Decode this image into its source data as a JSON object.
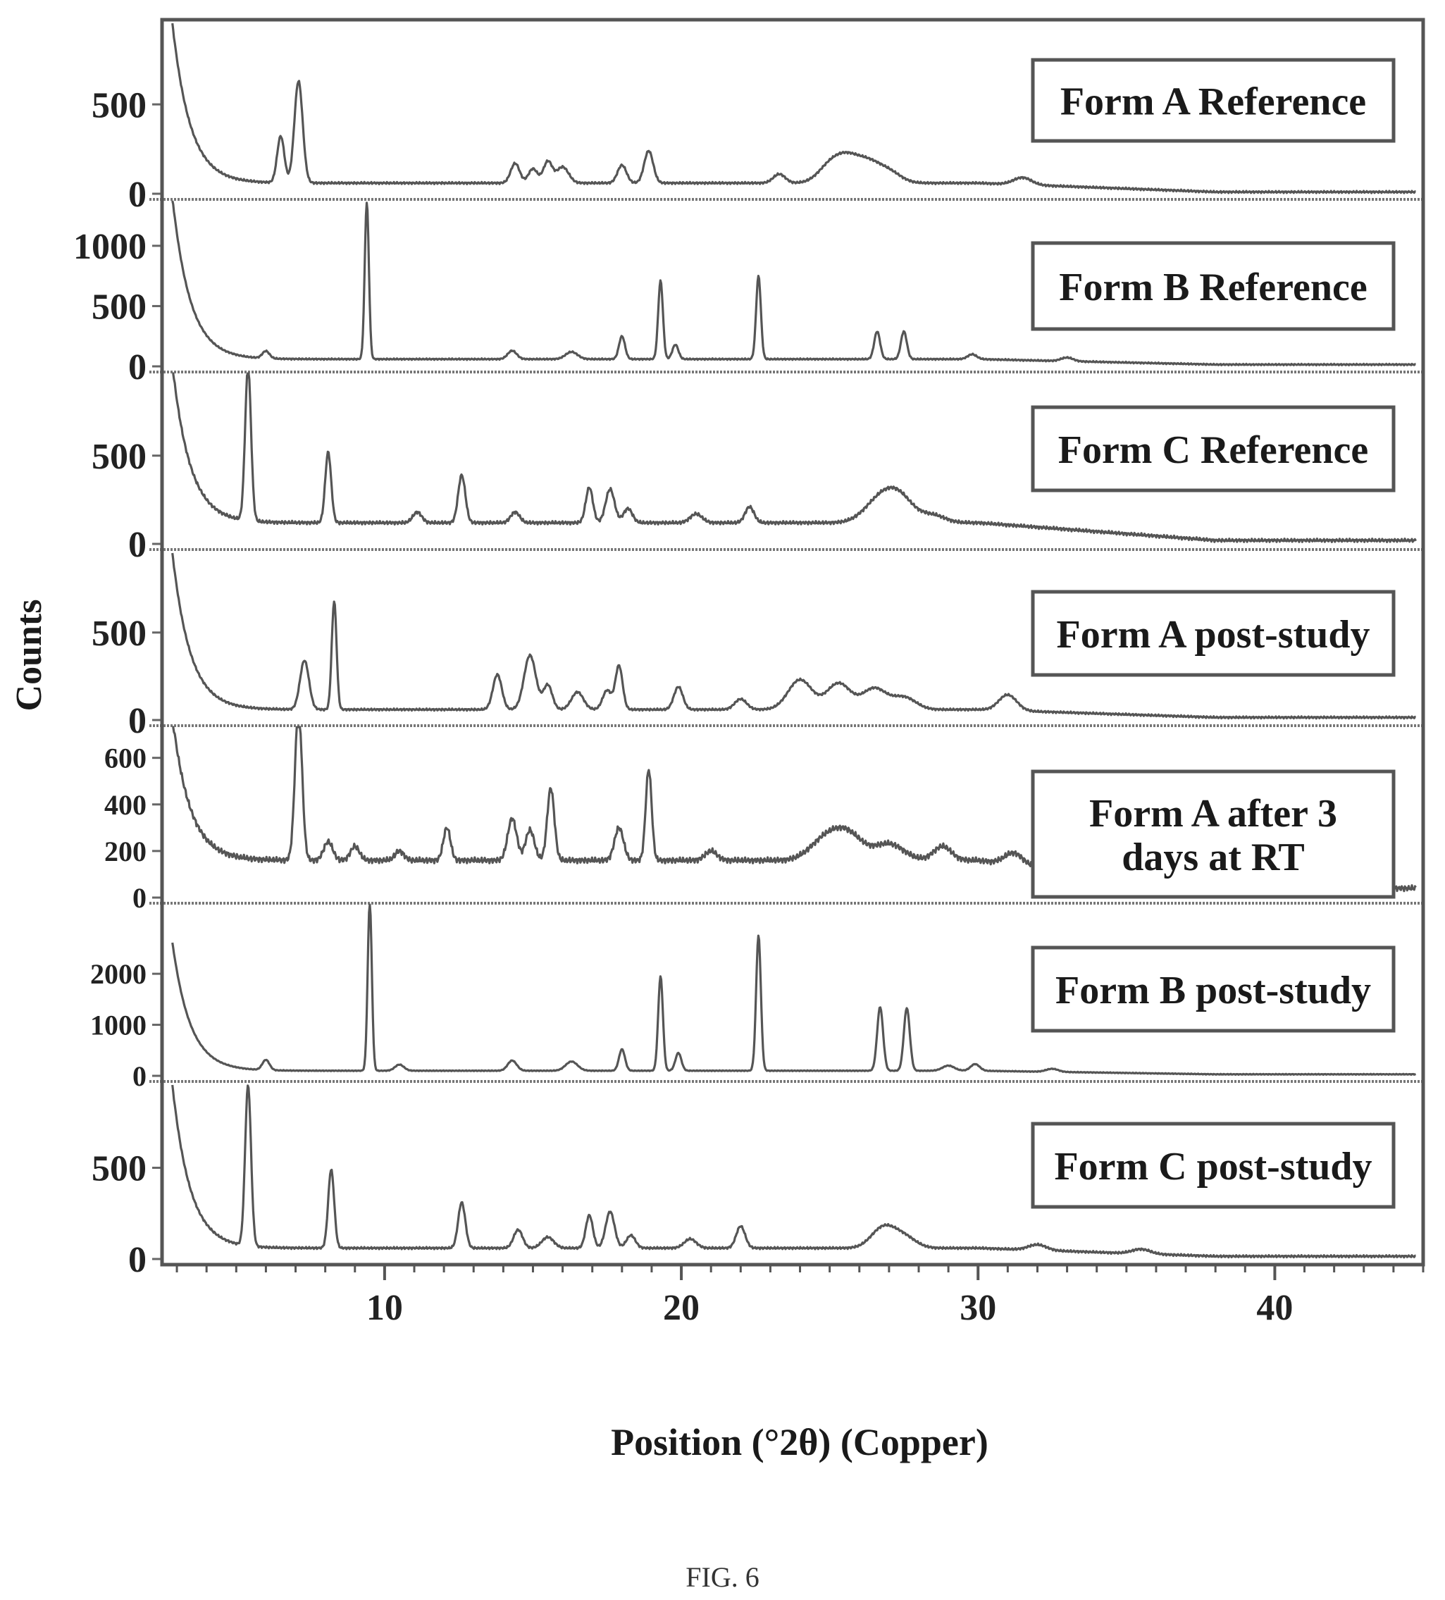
{
  "figure_caption": "FIG. 6",
  "chart_data": {
    "type": "line",
    "subtype": "stacked-xrd-patterns",
    "xlabel": "Position (°2θ) (Copper)",
    "ylabel": "Counts",
    "xlim": [
      2.5,
      45
    ],
    "x_ticks": [
      10,
      20,
      30,
      40
    ],
    "x_tick_labels": [
      "10",
      "20",
      "30",
      "40"
    ],
    "grid": false,
    "legend_placement": "right, one boxed label per panel",
    "line_color": "#555555",
    "panels": [
      {
        "name": "Form A Reference",
        "label_lines": [
          "Form A Reference"
        ],
        "ylim": [
          0,
          950
        ],
        "y_ticks": [
          0,
          500
        ],
        "y_tick_labels": [
          "0",
          "500"
        ],
        "baseline": 60,
        "decay": 1600,
        "tail_end": 10,
        "peaks": [
          [
            6.5,
            260,
            0.12
          ],
          [
            7.1,
            570,
            0.14
          ],
          [
            14.4,
            110,
            0.15
          ],
          [
            15.0,
            80,
            0.15
          ],
          [
            15.5,
            120,
            0.15
          ],
          [
            16.0,
            90,
            0.2
          ],
          [
            18.0,
            100,
            0.15
          ],
          [
            18.9,
            180,
            0.15
          ],
          [
            23.3,
            50,
            0.2
          ],
          [
            25.0,
            90,
            0.4
          ],
          [
            25.6,
            120,
            0.4
          ],
          [
            26.3,
            100,
            0.4
          ],
          [
            27.0,
            60,
            0.4
          ],
          [
            31.5,
            40,
            0.3
          ]
        ]
      },
      {
        "name": "Form B Reference",
        "label_lines": [
          "Form B Reference"
        ],
        "ylim": [
          0,
          1350
        ],
        "y_ticks": [
          0,
          500,
          1000
        ],
        "y_tick_labels": [
          "0",
          "500",
          "1000"
        ],
        "baseline": 60,
        "decay": 2400,
        "tail_end": 15,
        "peaks": [
          [
            6.0,
            60,
            0.12
          ],
          [
            9.4,
            1300,
            0.07
          ],
          [
            14.3,
            70,
            0.15
          ],
          [
            16.3,
            60,
            0.2
          ],
          [
            18.0,
            190,
            0.1
          ],
          [
            19.3,
            650,
            0.08
          ],
          [
            19.8,
            120,
            0.1
          ],
          [
            22.6,
            690,
            0.08
          ],
          [
            26.6,
            230,
            0.1
          ],
          [
            27.5,
            230,
            0.1
          ],
          [
            29.8,
            40,
            0.15
          ],
          [
            33.0,
            30,
            0.2
          ]
        ]
      },
      {
        "name": "Form C Reference",
        "label_lines": [
          "Form C Reference"
        ],
        "ylim": [
          0,
          950
        ],
        "y_ticks": [
          0,
          500
        ],
        "y_tick_labels": [
          "0",
          "500"
        ],
        "baseline": 120,
        "decay": 1600,
        "tail_end": 20,
        "peaks": [
          [
            5.4,
            870,
            0.1
          ],
          [
            8.1,
            400,
            0.1
          ],
          [
            11.1,
            60,
            0.15
          ],
          [
            12.6,
            270,
            0.12
          ],
          [
            14.4,
            60,
            0.15
          ],
          [
            16.9,
            200,
            0.12
          ],
          [
            17.6,
            190,
            0.15
          ],
          [
            18.2,
            80,
            0.15
          ],
          [
            20.5,
            50,
            0.2
          ],
          [
            22.3,
            90,
            0.15
          ],
          [
            26.6,
            100,
            0.5
          ],
          [
            27.3,
            150,
            0.5
          ],
          [
            28.5,
            40,
            0.4
          ]
        ]
      },
      {
        "name": "Form A post-study",
        "label_lines": [
          "Form A post-study"
        ],
        "ylim": [
          0,
          950
        ],
        "y_ticks": [
          0,
          500
        ],
        "y_tick_labels": [
          "0",
          "500"
        ],
        "baseline": 60,
        "decay": 1600,
        "tail_end": 15,
        "peaks": [
          [
            7.3,
            280,
            0.15
          ],
          [
            8.3,
            620,
            0.08
          ],
          [
            13.8,
            200,
            0.15
          ],
          [
            14.9,
            310,
            0.2
          ],
          [
            15.5,
            140,
            0.15
          ],
          [
            16.5,
            100,
            0.2
          ],
          [
            17.5,
            110,
            0.15
          ],
          [
            17.9,
            250,
            0.12
          ],
          [
            19.9,
            130,
            0.15
          ],
          [
            22.0,
            60,
            0.2
          ],
          [
            24.0,
            170,
            0.4
          ],
          [
            25.3,
            150,
            0.4
          ],
          [
            26.5,
            120,
            0.4
          ],
          [
            27.5,
            70,
            0.4
          ],
          [
            31.0,
            90,
            0.3
          ]
        ]
      },
      {
        "name": "Form A after 3 days at RT",
        "label_lines": [
          "Form A after 3",
          "days at RT"
        ],
        "ylim": [
          0,
          720
        ],
        "y_ticks": [
          0,
          200,
          400,
          600
        ],
        "y_tick_labels": [
          "0",
          "200",
          "400",
          "600"
        ],
        "baseline": 160,
        "decay": 1100,
        "tail_end": 40,
        "peaks": [
          [
            7.1,
            650,
            0.12
          ],
          [
            8.1,
            80,
            0.15
          ],
          [
            9.0,
            60,
            0.15
          ],
          [
            10.5,
            40,
            0.15
          ],
          [
            12.1,
            140,
            0.12
          ],
          [
            14.3,
            180,
            0.15
          ],
          [
            14.9,
            130,
            0.15
          ],
          [
            15.6,
            310,
            0.12
          ],
          [
            17.9,
            140,
            0.15
          ],
          [
            18.9,
            390,
            0.1
          ],
          [
            21.0,
            40,
            0.2
          ],
          [
            24.8,
            80,
            0.5
          ],
          [
            25.6,
            110,
            0.5
          ],
          [
            27.0,
            70,
            0.5
          ],
          [
            28.8,
            60,
            0.3
          ],
          [
            31.2,
            50,
            0.3
          ]
        ]
      },
      {
        "name": "Form B post-study",
        "label_lines": [
          "Form B post-study"
        ],
        "ylim": [
          0,
          3300
        ],
        "y_ticks": [
          0,
          1000,
          2000
        ],
        "y_tick_labels": [
          "0",
          "1000",
          "2000"
        ],
        "baseline": 100,
        "decay": 4500,
        "tail_end": 30,
        "peaks": [
          [
            6.0,
            200,
            0.12
          ],
          [
            9.5,
            3300,
            0.07
          ],
          [
            10.5,
            120,
            0.15
          ],
          [
            14.3,
            200,
            0.15
          ],
          [
            16.3,
            180,
            0.2
          ],
          [
            18.0,
            420,
            0.1
          ],
          [
            19.3,
            1850,
            0.08
          ],
          [
            19.9,
            350,
            0.1
          ],
          [
            22.6,
            2650,
            0.08
          ],
          [
            26.7,
            1250,
            0.1
          ],
          [
            27.6,
            1230,
            0.1
          ],
          [
            29.0,
            100,
            0.2
          ],
          [
            29.9,
            130,
            0.15
          ],
          [
            32.5,
            60,
            0.2
          ]
        ]
      },
      {
        "name": "Form C post-study",
        "label_lines": [
          "Form C post-study"
        ],
        "ylim": [
          0,
          950
        ],
        "y_ticks": [
          0,
          500
        ],
        "y_tick_labels": [
          "0",
          "500"
        ],
        "baseline": 60,
        "decay": 1600,
        "tail_end": 15,
        "peaks": [
          [
            5.4,
            880,
            0.1
          ],
          [
            8.2,
            430,
            0.1
          ],
          [
            12.6,
            250,
            0.12
          ],
          [
            14.5,
            100,
            0.15
          ],
          [
            15.5,
            60,
            0.2
          ],
          [
            16.9,
            180,
            0.12
          ],
          [
            17.6,
            200,
            0.15
          ],
          [
            18.3,
            70,
            0.15
          ],
          [
            20.3,
            50,
            0.2
          ],
          [
            22.0,
            120,
            0.15
          ],
          [
            26.8,
            110,
            0.4
          ],
          [
            27.5,
            60,
            0.4
          ],
          [
            32.0,
            30,
            0.3
          ],
          [
            35.5,
            25,
            0.3
          ]
        ]
      }
    ]
  }
}
